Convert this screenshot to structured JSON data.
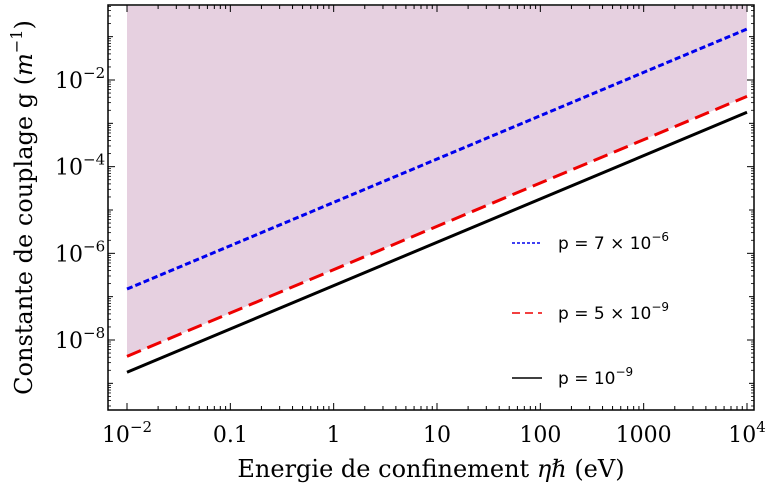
{
  "chart_data": {
    "type": "line",
    "xscale": "log",
    "yscale": "log",
    "xlim": [
      0.01,
      10000
    ],
    "ylim": [
      1e-09,
      0.1
    ],
    "xlabel": {
      "pre": "Energie de confinement ",
      "sym": "ηℏ",
      "post": " (eV)"
    },
    "ylabel": {
      "pre": "Constante de couplage g (",
      "sym": "m",
      "sup": "−1",
      "post": ")"
    },
    "xticks": [
      {
        "value": 0.01,
        "base": "10",
        "exp": "−2"
      },
      {
        "value": 0.1,
        "text": "0.1"
      },
      {
        "value": 1,
        "text": "1"
      },
      {
        "value": 10,
        "text": "10"
      },
      {
        "value": 100,
        "text": "100"
      },
      {
        "value": 1000,
        "text": "1000"
      },
      {
        "value": 10000,
        "base": "10",
        "exp": "4"
      }
    ],
    "yticks": [
      {
        "value": 1e-08,
        "base": "10",
        "exp": "−8"
      },
      {
        "value": 1e-06,
        "base": "10",
        "exp": "−6"
      },
      {
        "value": 0.0001,
        "base": "10",
        "exp": "−4"
      },
      {
        "value": 0.01,
        "base": "10",
        "exp": "−2"
      }
    ],
    "series": [
      {
        "label_pre": "p = 7 × 10",
        "label_exp": "−6",
        "x": [
          0.01,
          10000
        ],
        "y": [
          1.5e-07,
          0.15
        ],
        "color": "#0000ee",
        "dash": "6,3",
        "width": 3
      },
      {
        "label_pre": "p = 5 × 10",
        "label_exp": "−9",
        "x": [
          0.01,
          10000
        ],
        "y": [
          4.2e-09,
          0.0042
        ],
        "color": "#ee0000",
        "dash": "15,7",
        "width": 3
      },
      {
        "label_pre": "p = 10",
        "label_exp": "−9",
        "x": [
          0.01,
          10000
        ],
        "y": [
          1.8e-09,
          0.0018
        ],
        "color": "#000000",
        "dash": "",
        "width": 3
      }
    ],
    "shaded_region": {
      "x": [
        0.01,
        10000
      ],
      "y_lower_from_series": 1,
      "y_upper": 0.1,
      "color": "#e6d0e0"
    },
    "legend_position": "right-center",
    "grid": false
  }
}
